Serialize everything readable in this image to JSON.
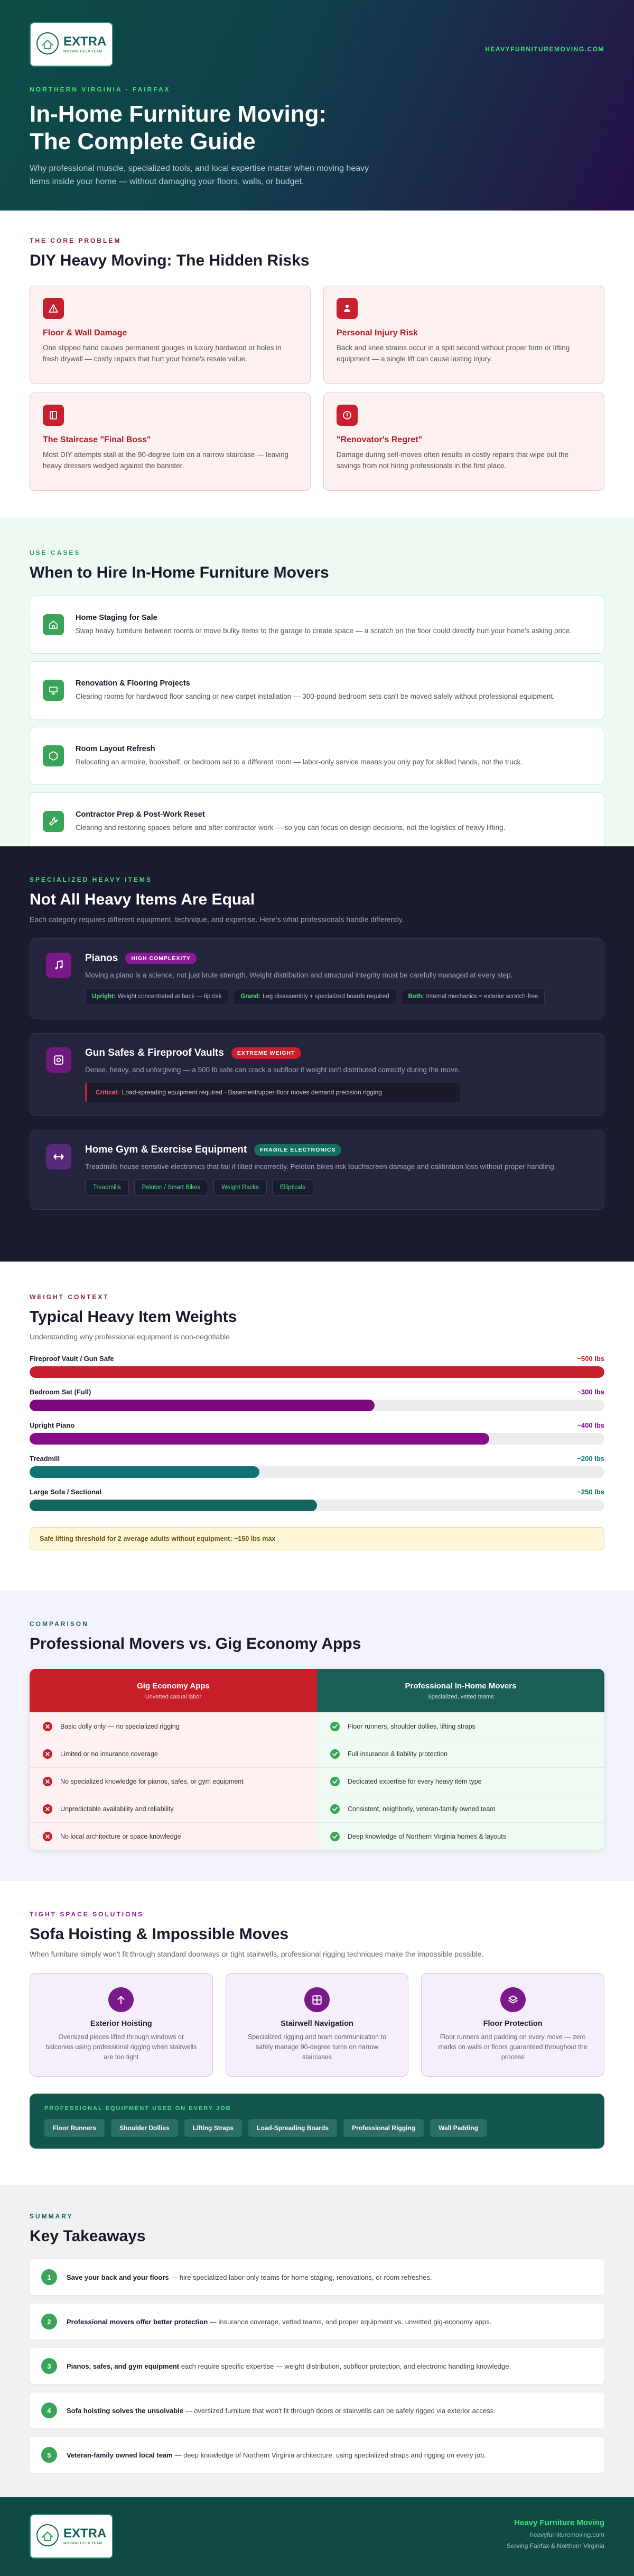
{
  "header": {
    "logo": {
      "name": "EXTRA",
      "tagline": "MOVING HELP TEAM"
    },
    "url": "HEAVYFURNITUREMOVING.COM",
    "eyebrow": "NORTHERN VIRGINIA · FAIRFAX",
    "title": [
      "In-Home Furniture Moving:",
      "The Complete Guide"
    ],
    "subtitle": "Why professional muscle, specialized tools, and local expertise matter when moving heavy items inside your home — without damaging your floors, walls, or budget."
  },
  "problem": {
    "eyebrow": "THE CORE PROBLEM",
    "title": "DIY Heavy Moving: The Hidden Risks",
    "cards": [
      {
        "title": "Floor & Wall Damage",
        "text": "One slipped hand causes permanent gouges in luxury hardwood or holes in fresh drywall — costly repairs that hurt your home's resale value."
      },
      {
        "title": "Personal Injury Risk",
        "text": "Back and knee strains occur in a split second without proper form or lifting equipment — a single lift can cause lasting injury."
      },
      {
        "title": "The Staircase \"Final Boss\"",
        "text": "Most DIY attempts stall at the 90-degree turn on a narrow staircase — leaving heavy dressers wedged against the banister."
      },
      {
        "title": "\"Renovator's Regret\"",
        "text": "Damage during self-moves often results in costly repairs that wipe out the savings from not hiring professionals in the first place."
      }
    ]
  },
  "use_cases": {
    "eyebrow": "USE CASES",
    "title": "When to Hire In-Home Furniture Movers",
    "items": [
      {
        "title": "Home Staging for Sale",
        "text": "Swap heavy furniture between rooms or move bulky items to the garage to create space — a scratch on the floor could directly hurt your home's asking price."
      },
      {
        "title": "Renovation & Flooring Projects",
        "text": "Clearing rooms for hardwood floor sanding or new carpet installation — 300-pound bedroom sets can't be moved safely without professional equipment."
      },
      {
        "title": "Room Layout Refresh",
        "text": "Relocating an armoire, bookshelf, or bedroom set to a different room — labor-only service means you only pay for skilled hands, not the truck."
      },
      {
        "title": "Contractor Prep & Post-Work Reset",
        "text": "Clearing and restoring spaces before and after contractor work — so you can focus on design decisions, not the logistics of heavy lifting."
      }
    ]
  },
  "heavy_items": {
    "eyebrow": "SPECIALIZED HEAVY ITEMS",
    "title": "Not All Heavy Items Are Equal",
    "subtitle": "Each category requires different equipment, technique, and expertise. Here's what professionals handle differently.",
    "items": [
      {
        "name": "Pianos",
        "badge": "HIGH COMPLEXITY",
        "text": "Moving a piano is a science, not just brute strength. Weight distribution and structural integrity must be carefully managed at every step.",
        "details": [
          {
            "label": "Upright:",
            "text": "Weight concentrated at back — tip risk"
          },
          {
            "label": "Grand:",
            "text": "Leg disassembly + specialized boards required"
          },
          {
            "label": "Both:",
            "text": "Internal mechanics = exterior scratch-free"
          }
        ]
      },
      {
        "name": "Gun Safes & Fireproof Vaults",
        "badge": "EXTREME WEIGHT",
        "text": "Dense, heavy, and unforgiving — a 500 lb safe can crack a subfloor if weight isn't distributed correctly during the move.",
        "note": {
          "label": "Critical:",
          "text": "Load-spreading equipment required · Basement/upper-floor moves demand precision rigging"
        }
      },
      {
        "name": "Home Gym & Exercise Equipment",
        "badge": "FRAGILE ELECTRONICS",
        "text": "Treadmills house sensitive electronics that fail if tilted incorrectly. Peloton bikes risk touchscreen damage and calibration loss without proper handling.",
        "tags": [
          "Treadmills",
          "Peloton / Smart Bikes",
          "Weight Racks",
          "Ellipticals"
        ]
      }
    ]
  },
  "chart_data": {
    "type": "bar",
    "eyebrow": "WEIGHT CONTEXT",
    "title": "Typical Heavy Item Weights",
    "subtitle": "Understanding why professional equipment is non-negotiable",
    "categories": [
      "Fireproof Vault / Gun Safe",
      "Bedroom Set (Full)",
      "Upright Piano",
      "Treadmill",
      "Large Sofa / Sectional"
    ],
    "values": [
      500,
      300,
      400,
      200,
      250
    ],
    "value_labels": [
      "~500 lbs",
      "~300 lbs",
      "~400 lbs",
      "~200 lbs",
      "~250 lbs"
    ],
    "colors": [
      "#c8202e",
      "#7c0a7c",
      "#8a0a8c",
      "#137272",
      "#15665f"
    ],
    "xlim": [
      0,
      500
    ],
    "note": "Safe lifting threshold for 2 average adults without equipment: ~150 lbs max"
  },
  "comparison": {
    "eyebrow": "COMPARISON",
    "title": "Professional Movers vs. Gig Economy Apps",
    "columns": [
      {
        "title": "Gig Economy Apps",
        "subtitle": "Unvetted casual labor",
        "rows": [
          "Basic dolly only — no specialized rigging",
          "Limited or no insurance coverage",
          "No specialized knowledge for pianos, safes, or gym equipment",
          "Unpredictable availability and reliability",
          "No local architecture or space knowledge"
        ]
      },
      {
        "title": "Professional In-Home Movers",
        "subtitle": "Specialized, vetted teams",
        "rows": [
          "Floor runners, shoulder dollies, lifting straps",
          "Full insurance & liability protection",
          "Dedicated expertise for every heavy item type",
          "Consistent, neighborly, veteran-family owned team",
          "Deep knowledge of Northern Virginia homes & layouts"
        ]
      }
    ]
  },
  "tight_space": {
    "eyebrow": "TIGHT SPACE SOLUTIONS",
    "title": "Sofa Hoisting & Impossible Moves",
    "subtitle": "When furniture simply won't fit through standard doorways or tight stairwells, professional rigging techniques make the impossible possible.",
    "cards": [
      {
        "title": "Exterior Hoisting",
        "text": "Oversized pieces lifted through windows or balconies using professional rigging when stairwells are too tight"
      },
      {
        "title": "Stairwell Navigation",
        "text": "Specialized rigging and team communication to safely manage 90-degree turns on narrow staircases"
      },
      {
        "title": "Floor Protection",
        "text": "Floor runners and padding on every move — zero marks on walls or floors guaranteed throughout the process"
      }
    ],
    "equipment": {
      "title": "PROFESSIONAL EQUIPMENT USED ON EVERY JOB",
      "items": [
        "Floor Runners",
        "Shoulder Dollies",
        "Lifting Straps",
        "Load-Spreading Boards",
        "Professional Rigging",
        "Wall Padding"
      ]
    }
  },
  "summary": {
    "eyebrow": "SUMMARY",
    "title": "Key Takeaways",
    "items": [
      {
        "number": "1",
        "lead": "Save your back and your floors",
        "text": " — hire specialized labor-only teams for home staging, renovations, or room refreshes."
      },
      {
        "number": "2",
        "lead": "Professional movers offer better protection",
        "text": " — insurance coverage, vetted teams, and proper equipment vs. unvetted gig-economy apps."
      },
      {
        "number": "3",
        "lead": "Pianos, safes, and gym equipment",
        "text": " each require specific expertise — weight distribution, subfloor protection, and electronic handling knowledge."
      },
      {
        "number": "4",
        "lead": "Sofa hoisting solves the unsolvable",
        "text": " — oversized furniture that won't fit through doors or stairwells can be safely rigged via exterior access."
      },
      {
        "number": "5",
        "lead": "Veteran-family owned local team",
        "text": " — deep knowledge of Northern Virginia architecture, using specialized straps and rigging on every job."
      }
    ]
  },
  "footer": {
    "logo": {
      "name": "EXTRA",
      "tagline": "MOVING HELP TEAM"
    },
    "name": "Heavy Furniture Moving",
    "url": "heavyfurnituremoving.com",
    "area": "Serving Fairfax & Northern Virginia"
  }
}
